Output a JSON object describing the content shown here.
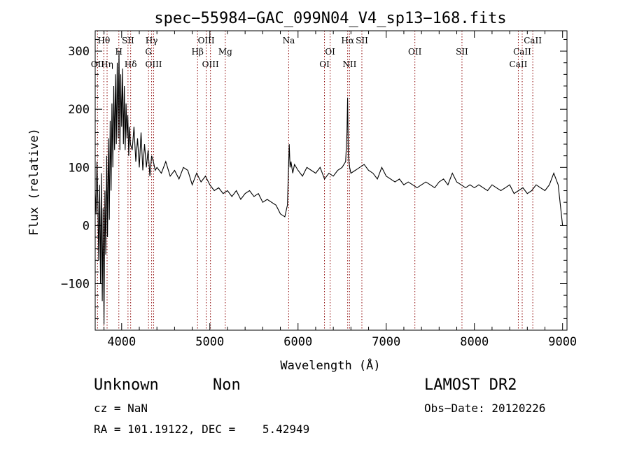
{
  "chart_data": {
    "type": "line",
    "title": "spec−55984−GAC_099N04_V4_sp13−168.fits",
    "xlabel": "Wavelength (Å)",
    "ylabel": "Flux (relative)",
    "xlim": [
      3700,
      9050
    ],
    "ylim": [
      -180,
      335
    ],
    "xticks": [
      4000,
      5000,
      6000,
      7000,
      8000,
      9000
    ],
    "xtick_labels": [
      "4000",
      "5000",
      "6000",
      "7000",
      "8000",
      "9000"
    ],
    "yticks": [
      -100,
      0,
      100,
      200,
      300
    ],
    "ytick_labels": [
      "−100",
      "0",
      "100",
      "200",
      "300"
    ],
    "grid": false,
    "legend": "none",
    "line_color": "#000000",
    "marker_color": "#8b0000",
    "series": [
      {
        "x": [
          3700,
          3710,
          3720,
          3730,
          3740,
          3750,
          3760,
          3770,
          3780,
          3790,
          3800,
          3810,
          3820,
          3830,
          3840,
          3850,
          3860,
          3870,
          3880,
          3890,
          3900,
          3910,
          3920,
          3930,
          3940,
          3950,
          3960,
          3970,
          3980,
          3990,
          4000,
          4010,
          4020,
          4030,
          4040,
          4050,
          4060,
          4070,
          4080,
          4090,
          4100,
          4120,
          4140,
          4160,
          4180,
          4200,
          4220,
          4240,
          4260,
          4280,
          4300,
          4320,
          4340,
          4360,
          4380,
          4400,
          4450,
          4500,
          4550,
          4600,
          4650,
          4700,
          4750,
          4800,
          4850,
          4900,
          4950,
          5000,
          5050,
          5100,
          5150,
          5200,
          5250,
          5300,
          5350,
          5400,
          5450,
          5500,
          5550,
          5600,
          5650,
          5700,
          5750,
          5800,
          5850,
          5880,
          5900,
          5910,
          5920,
          5940,
          5960,
          6000,
          6050,
          6100,
          6150,
          6200,
          6250,
          6300,
          6350,
          6400,
          6450,
          6500,
          6540,
          6555,
          6562,
          6570,
          6585,
          6600,
          6650,
          6700,
          6750,
          6800,
          6850,
          6900,
          6950,
          7000,
          7050,
          7100,
          7150,
          7200,
          7250,
          7300,
          7350,
          7400,
          7450,
          7500,
          7550,
          7600,
          7650,
          7700,
          7750,
          7800,
          7850,
          7900,
          7950,
          8000,
          8050,
          8100,
          8150,
          8200,
          8250,
          8300,
          8350,
          8400,
          8450,
          8500,
          8550,
          8600,
          8650,
          8700,
          8750,
          8800,
          8850,
          8900,
          8950,
          9000
        ],
        "y": [
          60,
          20,
          110,
          40,
          -60,
          70,
          -100,
          90,
          -130,
          30,
          -170,
          60,
          -50,
          120,
          -20,
          150,
          10,
          180,
          60,
          210,
          100,
          240,
          130,
          260,
          140,
          280,
          150,
          300,
          130,
          260,
          170,
          270,
          140,
          240,
          130,
          210,
          150,
          190,
          120,
          170,
          140,
          130,
          170,
          110,
          150,
          100,
          160,
          95,
          140,
          100,
          130,
          85,
          120,
          110,
          95,
          100,
          90,
          110,
          85,
          95,
          80,
          100,
          95,
          70,
          90,
          75,
          85,
          70,
          60,
          65,
          55,
          60,
          50,
          60,
          45,
          55,
          60,
          50,
          55,
          40,
          45,
          40,
          35,
          20,
          15,
          35,
          140,
          100,
          110,
          90,
          105,
          95,
          85,
          100,
          95,
          90,
          100,
          80,
          90,
          85,
          95,
          100,
          110,
          160,
          220,
          120,
          100,
          90,
          95,
          100,
          105,
          95,
          90,
          80,
          100,
          85,
          80,
          75,
          80,
          70,
          75,
          70,
          65,
          70,
          75,
          70,
          65,
          75,
          80,
          70,
          90,
          75,
          70,
          65,
          70,
          65,
          70,
          65,
          60,
          70,
          65,
          60,
          65,
          70,
          55,
          60,
          65,
          55,
          60,
          70,
          65,
          60,
          70,
          90,
          70,
          0
        ]
      }
    ],
    "line_markers": [
      {
        "label": "Hθ",
        "wavelength": 3798,
        "row": 1
      },
      {
        "label": "OII",
        "wavelength": 3727,
        "row": 3
      },
      {
        "label": "Hη",
        "wavelength": 3835,
        "row": 3
      },
      {
        "label": "SII",
        "wavelength": 4072,
        "row": 1
      },
      {
        "label": "H",
        "wavelength": 3968,
        "row": 2
      },
      {
        "label": "Hδ",
        "wavelength": 4102,
        "row": 3
      },
      {
        "label": "Hγ",
        "wavelength": 4340,
        "row": 1
      },
      {
        "label": "G",
        "wavelength": 4305,
        "row": 2
      },
      {
        "label": "OIII",
        "wavelength": 4363,
        "row": 3
      },
      {
        "label": "OIII",
        "wavelength": 4959,
        "row": 1
      },
      {
        "label": "Hβ",
        "wavelength": 4861,
        "row": 2
      },
      {
        "label": "Mg",
        "wavelength": 5175,
        "row": 2
      },
      {
        "label": "OIII",
        "wavelength": 5007,
        "row": 3
      },
      {
        "label": "Na",
        "wavelength": 5894,
        "row": 1
      },
      {
        "label": "OI",
        "wavelength": 6364,
        "row": 2
      },
      {
        "label": "OI",
        "wavelength": 6300,
        "row": 3
      },
      {
        "label": "Hα",
        "wavelength": 6563,
        "row": 1
      },
      {
        "label": "SII",
        "wavelength": 6724,
        "row": 1
      },
      {
        "label": "NII",
        "wavelength": 6584,
        "row": 3
      },
      {
        "label": "OII",
        "wavelength": 7325,
        "row": 2
      },
      {
        "label": "SII",
        "wavelength": 7859,
        "row": 2
      },
      {
        "label": "CaII",
        "wavelength": 8662,
        "row": 1
      },
      {
        "label": "CaII",
        "wavelength": 8542,
        "row": 2
      },
      {
        "label": "CaII",
        "wavelength": 8498,
        "row": 3
      }
    ]
  },
  "info": {
    "object_class": "Unknown",
    "subclass": "Non",
    "survey": "LAMOST DR2",
    "redshift": "cz = NaN",
    "obs_date": "Obs−Date: 20120226",
    "coords": "RA = 101.19122, DEC =    5.42949"
  }
}
